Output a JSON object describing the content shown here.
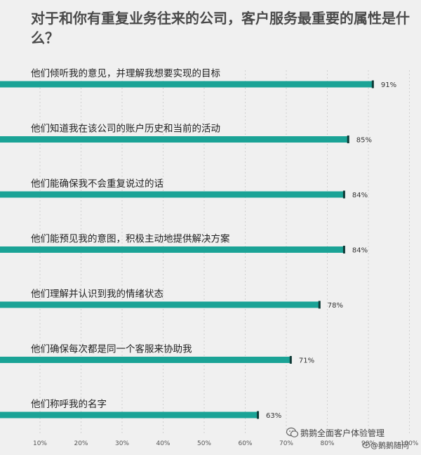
{
  "title": "对于和你有重复业务往来的公司，客户服务最重要的属性是什么？",
  "chart_data": {
    "type": "bar",
    "orientation": "horizontal",
    "categories": [
      "他们倾听我的意见，并理解我想要实现的目标",
      "他们知道我在该公司的账户历史和当前的活动",
      "他们能确保我不会重复说过的话",
      "他们能预见我的意图，积极主动地提供解决方案",
      "他们理解并认识到我的情绪状态",
      "他们确保每次都是同一个客服来协助我",
      "他们称呼我的名字"
    ],
    "values": [
      91,
      85,
      84,
      84,
      78,
      71,
      63
    ],
    "value_labels": [
      "91%",
      "85%",
      "84%",
      "84%",
      "78%",
      "71%",
      "63%"
    ],
    "x_ticks": [
      "10%",
      "20%",
      "30%",
      "40%",
      "50%",
      "60%",
      "70%",
      "80%",
      "90%",
      "100%"
    ],
    "xlim": [
      0,
      100
    ],
    "grid": true,
    "bar_color": "#1aa396"
  },
  "watermark": {
    "line1": "鹅鹅全面客户体验管理",
    "line2": "@鹅鹅随问"
  }
}
